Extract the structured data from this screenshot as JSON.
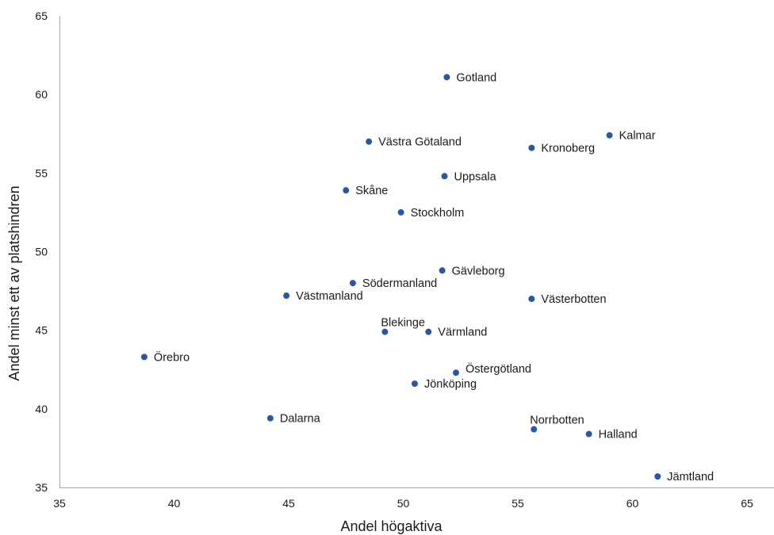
{
  "chart_data": {
    "type": "scatter",
    "title": "",
    "xlabel": "Andel högaktiva",
    "ylabel": "Andel minst ett av platshindren",
    "xlim": [
      35,
      65
    ],
    "ylim": [
      35,
      65
    ],
    "xticks": [
      "35",
      "40",
      "45",
      "50",
      "55",
      "60",
      "65"
    ],
    "yticks": [
      "35",
      "40",
      "45",
      "50",
      "55",
      "60",
      "65"
    ],
    "grid": false,
    "marker_color": "#2957a4",
    "points": [
      {
        "label": "Gotland",
        "x": 51.9,
        "y": 61.1,
        "label_pos": "right"
      },
      {
        "label": "Kalmar",
        "x": 59.0,
        "y": 57.4,
        "label_pos": "right"
      },
      {
        "label": "Västra Götaland",
        "x": 48.5,
        "y": 57.0,
        "label_pos": "right"
      },
      {
        "label": "Kronoberg",
        "x": 55.6,
        "y": 56.6,
        "label_pos": "right"
      },
      {
        "label": "Uppsala",
        "x": 51.8,
        "y": 54.8,
        "label_pos": "right"
      },
      {
        "label": "Skåne",
        "x": 47.5,
        "y": 53.9,
        "label_pos": "right"
      },
      {
        "label": "Stockholm",
        "x": 49.9,
        "y": 52.5,
        "label_pos": "right"
      },
      {
        "label": "Gävleborg",
        "x": 51.7,
        "y": 48.8,
        "label_pos": "right"
      },
      {
        "label": "Södermanland",
        "x": 47.8,
        "y": 48.0,
        "label_pos": "right"
      },
      {
        "label": "Västmanland",
        "x": 44.9,
        "y": 47.2,
        "label_pos": "right"
      },
      {
        "label": "Västerbotten",
        "x": 55.6,
        "y": 47.0,
        "label_pos": "right"
      },
      {
        "label": "Blekinge",
        "x": 49.2,
        "y": 44.9,
        "label_pos": "above"
      },
      {
        "label": "Värmland",
        "x": 51.1,
        "y": 44.9,
        "label_pos": "right"
      },
      {
        "label": "Örebro",
        "x": 38.7,
        "y": 43.3,
        "label_pos": "right"
      },
      {
        "label": "Östergötland",
        "x": 52.3,
        "y": 42.3,
        "label_pos": "upper-right"
      },
      {
        "label": "Jönköping",
        "x": 50.5,
        "y": 41.6,
        "label_pos": "right"
      },
      {
        "label": "Dalarna",
        "x": 44.2,
        "y": 39.4,
        "label_pos": "right"
      },
      {
        "label": "Norrbotten",
        "x": 55.7,
        "y": 38.7,
        "label_pos": "above"
      },
      {
        "label": "Halland",
        "x": 58.1,
        "y": 38.4,
        "label_pos": "right"
      },
      {
        "label": "Jämtland",
        "x": 61.1,
        "y": 35.7,
        "label_pos": "right"
      }
    ]
  }
}
